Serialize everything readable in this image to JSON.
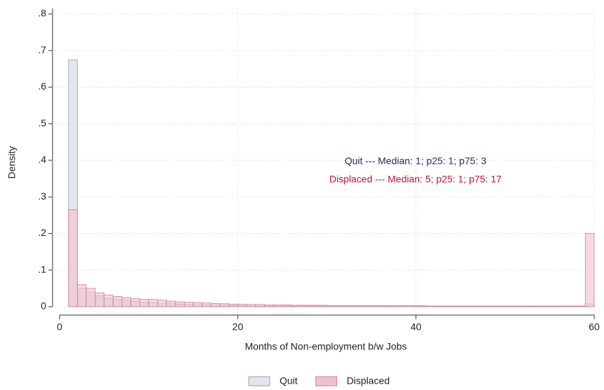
{
  "chart_data": {
    "type": "histogram",
    "xlabel": "Months of Non-employment b/w Jobs",
    "ylabel": "Density",
    "bins": [
      1,
      2,
      3,
      4,
      5,
      6,
      7,
      8,
      9,
      10,
      11,
      12,
      13,
      14,
      15,
      16,
      17,
      18,
      19,
      20,
      21,
      22,
      23,
      24,
      25,
      26,
      27,
      28,
      29,
      30,
      31,
      32,
      33,
      34,
      35,
      36,
      37,
      38,
      39,
      40,
      41,
      42,
      43,
      44,
      45,
      46,
      47,
      48,
      49,
      50,
      51,
      52,
      53,
      54,
      55,
      56,
      57,
      58,
      59,
      60
    ],
    "series": [
      {
        "name": "Quit",
        "color": "#e3e5ec",
        "edge": "#9ca2b6",
        "values": [
          0.675,
          0.05,
          0.04,
          0.03,
          0.022,
          0.02,
          0.017,
          0.015,
          0.012,
          0.011,
          0.01,
          0.008,
          0.007,
          0.006,
          0.005,
          0.005,
          0.004,
          0.004,
          0.003,
          0.003,
          0.002,
          0.002,
          0.002,
          0.002,
          0.002,
          0.002,
          0.002,
          0.002,
          0.002,
          0.002,
          0.002,
          0.002,
          0.002,
          0.002,
          0.002,
          0.001,
          0.001,
          0.001,
          0.001,
          0.001,
          0.001,
          0.001,
          0.001,
          0.001,
          0.001,
          0.001,
          0.001,
          0.001,
          0.001,
          0.001,
          0.001,
          0.001,
          0.001,
          0.001,
          0.001,
          0.001,
          0.001,
          0.001,
          0.008
        ]
      },
      {
        "name": "Displaced",
        "color": "#f2bfcd",
        "edge": "#cf8098",
        "values": [
          0.265,
          0.06,
          0.05,
          0.038,
          0.032,
          0.028,
          0.025,
          0.022,
          0.02,
          0.02,
          0.018,
          0.015,
          0.013,
          0.012,
          0.011,
          0.01,
          0.009,
          0.008,
          0.007,
          0.007,
          0.006,
          0.006,
          0.005,
          0.005,
          0.005,
          0.004,
          0.004,
          0.004,
          0.004,
          0.003,
          0.003,
          0.003,
          0.003,
          0.003,
          0.003,
          0.003,
          0.003,
          0.003,
          0.003,
          0.003,
          0.002,
          0.002,
          0.002,
          0.002,
          0.002,
          0.002,
          0.002,
          0.002,
          0.002,
          0.002,
          0.002,
          0.002,
          0.002,
          0.002,
          0.002,
          0.002,
          0.002,
          0.002,
          0.2
        ]
      }
    ],
    "annotations": [
      {
        "text": "Quit --- Median: 1; p25: 1; p75: 3",
        "color": "#1f3160"
      },
      {
        "text": "Displaced --- Median: 5; p25: 1; p75: 17",
        "color": "#c4123c"
      }
    ],
    "xlim": [
      0,
      60
    ],
    "xticks": [
      0,
      20,
      40,
      60
    ],
    "ylim": [
      0,
      0.8
    ],
    "yticks": [
      0,
      {
        "value": 0.1,
        "label": ".1"
      },
      {
        "value": 0.2,
        "label": ".2"
      },
      {
        "value": 0.3,
        "label": ".3"
      },
      {
        "value": 0.4,
        "label": ".4"
      },
      {
        "value": 0.5,
        "label": ".5"
      },
      {
        "value": 0.6,
        "label": ".6"
      },
      {
        "value": 0.7,
        "label": ".7"
      },
      {
        "value": 0.8,
        "label": ".8"
      }
    ],
    "grid": true,
    "legend": "bottom"
  }
}
